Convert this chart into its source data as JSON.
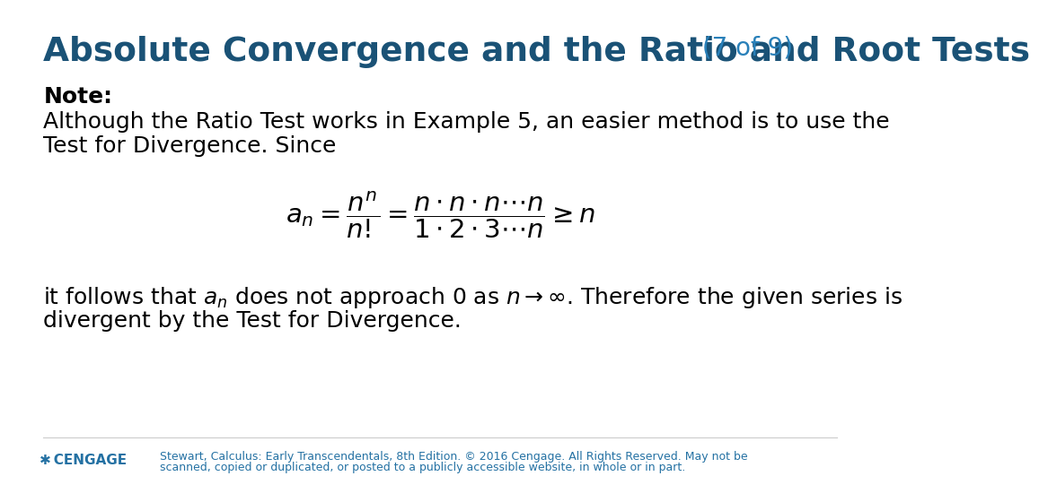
{
  "title_main": "Absolute Convergence and the Ratio and Root Tests",
  "title_suffix": " (7 of 9)",
  "title_color": "#1a5276",
  "title_suffix_color": "#2980b9",
  "bg_color": "#ffffff",
  "note_label": "Note:",
  "line1": "Although the Ratio Test works in Example 5, an easier method is to use the",
  "line2": "Test for Divergence. Since",
  "formula": "$a_n = \\dfrac{n^n}{n!} = \\dfrac{n \\cdot n \\cdot n \\cdots n}{1 \\cdot 2 \\cdot 3 \\cdots n} \\geq n$",
  "line3_full": "it follows that $a_n$ does not approach 0 as $n \\to \\infty$. Therefore the given series is",
  "line4": "divergent by the Test for Divergence.",
  "footer_line1": "Stewart, Calculus: Early Transcendentals, 8th Edition. © 2016 Cengage. All Rights Reserved. May not be",
  "footer_line2": "scanned, copied or duplicated, or posted to a publicly accessible website, in whole or in part.",
  "cengage_text": "CENGAGE",
  "text_color": "#000000",
  "footer_color": "#2471a3",
  "font_size_title": 27,
  "font_size_suffix": 20,
  "font_size_body": 18,
  "font_size_note": 18,
  "font_size_formula": 21,
  "font_size_footer": 9
}
